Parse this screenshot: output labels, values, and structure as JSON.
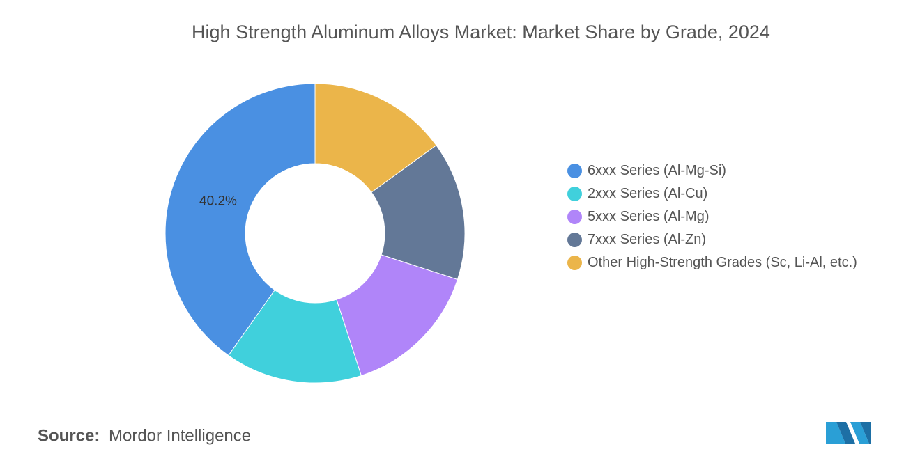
{
  "chart_data": {
    "type": "pie",
    "title": "High Strength Aluminum Alloys Market: Market Share by Grade, 2024",
    "categories": [
      "6xxx Series (Al-Mg-Si)",
      "2xxx Series (Al-Cu)",
      "5xxx Series (Al-Mg)",
      "7xxx Series (Al-Zn)",
      "Other High-Strength Grades (Sc, Li-Al, etc.)"
    ],
    "values": [
      40.2,
      14.8,
      15,
      15,
      15
    ],
    "value_labels": [
      "40.2%",
      null,
      null,
      null,
      null
    ],
    "colors": [
      "#4a90e2",
      "#40d0dc",
      "#b085f9",
      "#637897",
      "#ebb54a"
    ],
    "donut": true
  },
  "source": {
    "label": "Source:",
    "text": "Mordor Intelligence"
  }
}
